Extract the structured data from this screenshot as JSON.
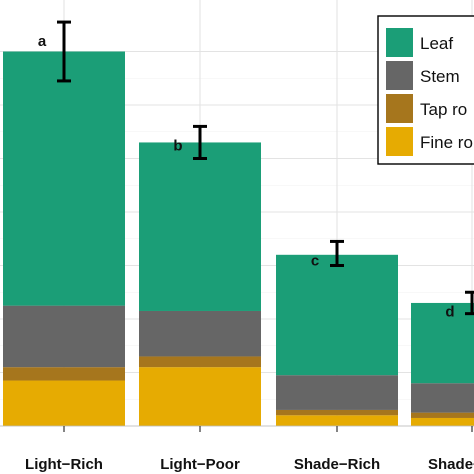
{
  "chart_data": {
    "type": "bar",
    "stacked": true,
    "categories": [
      "Light−Rich",
      "Light−Poor",
      "Shade−Rich",
      "Shade−Poor"
    ],
    "series": [
      {
        "name": "Fine roots",
        "legend_label": "Fine ro",
        "color": "#E6AB02",
        "values": [
          0.85,
          1.1,
          0.2,
          0.15
        ]
      },
      {
        "name": "Tap roots",
        "legend_label": "Tap ro",
        "color": "#A6761D",
        "values": [
          0.25,
          0.2,
          0.1,
          0.1
        ]
      },
      {
        "name": "Stem",
        "legend_label": "Stem",
        "color": "#666666",
        "values": [
          1.15,
          0.85,
          0.65,
          0.55
        ]
      },
      {
        "name": "Leaf",
        "legend_label": "Leaf",
        "color": "#1B9E77",
        "values": [
          4.75,
          3.15,
          2.25,
          1.5
        ]
      }
    ],
    "totals": [
      7.0,
      5.3,
      3.2,
      2.3
    ],
    "error_bars": [
      {
        "low": 6.45,
        "high": 7.55
      },
      {
        "low": 5.0,
        "high": 5.6
      },
      {
        "low": 3.0,
        "high": 3.45
      },
      {
        "low": 2.1,
        "high": 2.5
      }
    ],
    "significance_letters": [
      "a",
      "b",
      "c",
      "d"
    ],
    "ylim": [
      0,
      7.9
    ],
    "y_gridlines": [
      0,
      1,
      2,
      3,
      4,
      5,
      6,
      7
    ],
    "grid": true,
    "legend_position": "top-right",
    "title": "",
    "xlabel": "",
    "ylabel": ""
  }
}
